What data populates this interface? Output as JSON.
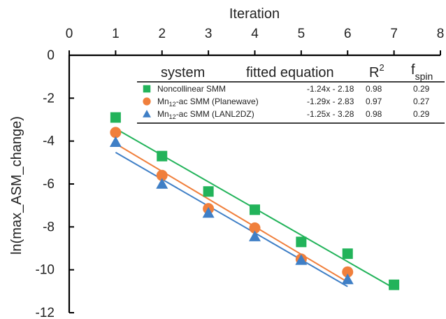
{
  "chart_data": {
    "type": "scatter",
    "xlabel": "Iteration",
    "ylabel": "ln(max_ASM_change)",
    "xlim": [
      0,
      8
    ],
    "ylim": [
      -12,
      0
    ],
    "x_ticks": [
      "0",
      "1",
      "2",
      "3",
      "4",
      "5",
      "6",
      "7",
      "8"
    ],
    "y_ticks": [
      "0",
      "-2",
      "-4",
      "-6",
      "-8",
      "-10",
      "-12"
    ],
    "x_axis_position": "top",
    "grid": false,
    "legend_position": "top-right",
    "legend_table": {
      "headers": {
        "system": "system",
        "equation": "fitted equation",
        "r2": "R",
        "r2_sup": "2",
        "fspin": "f",
        "fspin_sub": "spin"
      },
      "rows": [
        {
          "system": "Noncollinear SMM",
          "system_parts": [
            "Noncollinear SMM"
          ],
          "equation": "-1.24x - 2.18",
          "r2": "0.98",
          "fspin": "0.29"
        },
        {
          "system": "Mn12-ac SMM (Planewave)",
          "system_parts": [
            "Mn",
            "12",
            "-ac SMM (Planewave)"
          ],
          "equation": "-1.29x - 2.83",
          "r2": "0.97",
          "fspin": "0.27"
        },
        {
          "system": "Mn12-ac SMM (LANL2DZ)",
          "system_parts": [
            "Mn",
            "12",
            "-ac SMM (LANL2DZ)"
          ],
          "equation": "-1.25x - 3.28",
          "r2": "0.98",
          "fspin": "0.29"
        }
      ]
    },
    "series": [
      {
        "name": "Noncollinear SMM",
        "marker": "square",
        "color": "#22b35a",
        "x": [
          1,
          2,
          3,
          4,
          5,
          6,
          7
        ],
        "y": [
          -2.9,
          -4.7,
          -6.35,
          -7.2,
          -8.7,
          -9.25,
          -10.7
        ],
        "fit": {
          "slope": -1.24,
          "intercept": -2.18,
          "x_range": [
            1,
            7
          ]
        }
      },
      {
        "name": "Mn12-ac SMM (Planewave)",
        "marker": "circle",
        "color": "#f07f3c",
        "x": [
          1,
          2,
          3,
          4,
          5,
          6
        ],
        "y": [
          -3.6,
          -5.6,
          -7.15,
          -8.05,
          -9.5,
          -10.1
        ],
        "fit": {
          "slope": -1.29,
          "intercept": -2.83,
          "x_range": [
            1,
            6
          ]
        }
      },
      {
        "name": "Mn12-ac SMM (LANL2DZ)",
        "marker": "triangle",
        "color": "#3f7fc6",
        "x": [
          1,
          2,
          3,
          4,
          5,
          6
        ],
        "y": [
          -4.05,
          -6.0,
          -7.35,
          -8.45,
          -9.55,
          -10.45
        ],
        "fit": {
          "slope": -1.25,
          "intercept": -3.28,
          "x_range": [
            1,
            6
          ]
        }
      }
    ]
  }
}
